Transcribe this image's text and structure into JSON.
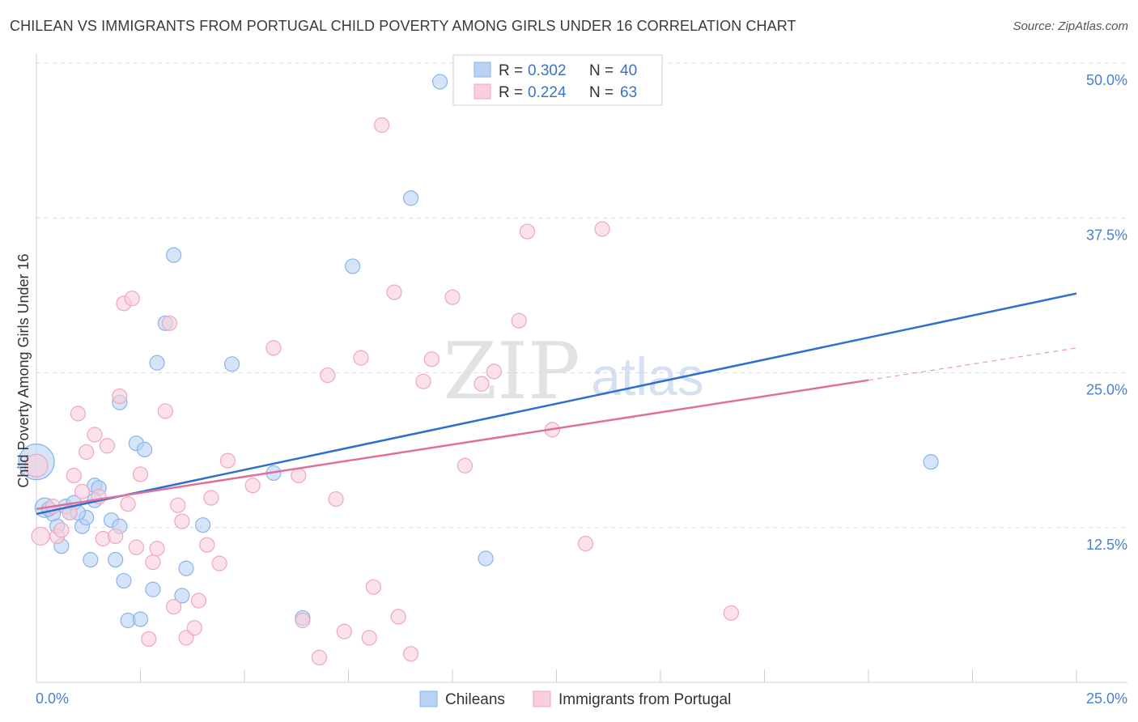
{
  "title": "CHILEAN VS IMMIGRANTS FROM PORTUGAL CHILD POVERTY AMONG GIRLS UNDER 16 CORRELATION CHART",
  "source": "Source: ZipAtlas.com",
  "watermark": {
    "zip": "ZIP",
    "atlas": "atlas"
  },
  "chart_data": {
    "type": "scatter",
    "title": "CHILEAN VS IMMIGRANTS FROM PORTUGAL CHILD POVERTY AMONG GIRLS UNDER 16 CORRELATION CHART",
    "xlabel": "",
    "ylabel": "Child Poverty Among Girls Under 16",
    "xlim": [
      0,
      25
    ],
    "ylim": [
      0,
      50
    ],
    "x_tick_labels": {
      "left": "0.0%",
      "right": "25.0%"
    },
    "y_ticks": [
      {
        "value": 12.5,
        "label": "12.5%"
      },
      {
        "value": 25.0,
        "label": "25.0%"
      },
      {
        "value": 37.5,
        "label": "37.5%"
      },
      {
        "value": 50.0,
        "label": "50.0%"
      }
    ],
    "legend": {
      "r_label": "R =",
      "n_label": "N =",
      "entries": [
        {
          "r": "0.302",
          "n": "40"
        },
        {
          "r": "0.224",
          "n": "63"
        }
      ]
    },
    "series": [
      {
        "name": "Chileans",
        "color": "#8ab4ea",
        "fill": "#b9d2f4",
        "line_color": "#2f6fd0",
        "trend": {
          "x0": 0,
          "y0": 13.6,
          "x1": 25,
          "y1": 31.4,
          "solid_until": 25
        },
        "points": [
          [
            0.0,
            17.8,
            22
          ],
          [
            0.2,
            14.1,
            12
          ],
          [
            0.4,
            13.6,
            9
          ],
          [
            0.5,
            12.6,
            9
          ],
          [
            0.6,
            11.0,
            9
          ],
          [
            0.7,
            14.2,
            9
          ],
          [
            0.8,
            13.7,
            9
          ],
          [
            0.9,
            14.5,
            9
          ],
          [
            1.1,
            12.6,
            9
          ],
          [
            1.2,
            13.3,
            9
          ],
          [
            1.3,
            9.9,
            9
          ],
          [
            1.4,
            15.9,
            9
          ],
          [
            1.5,
            15.7,
            9
          ],
          [
            1.4,
            14.7,
            9
          ],
          [
            1.8,
            13.1,
            9
          ],
          [
            1.9,
            9.9,
            9
          ],
          [
            2.0,
            12.6,
            9
          ],
          [
            2.0,
            22.6,
            9
          ],
          [
            2.1,
            8.2,
            9
          ],
          [
            2.2,
            5.0,
            9
          ],
          [
            2.5,
            5.1,
            9
          ],
          [
            2.4,
            19.3,
            9
          ],
          [
            2.6,
            18.8,
            9
          ],
          [
            2.8,
            7.5,
            9
          ],
          [
            2.9,
            25.8,
            9
          ],
          [
            3.1,
            29.0,
            9
          ],
          [
            3.3,
            34.5,
            9
          ],
          [
            3.5,
            7.0,
            9
          ],
          [
            3.6,
            9.2,
            9
          ],
          [
            4.0,
            12.7,
            9
          ],
          [
            4.7,
            25.7,
            9
          ],
          [
            5.7,
            16.9,
            9
          ],
          [
            6.4,
            5.2,
            9
          ],
          [
            7.6,
            33.6,
            9
          ],
          [
            9.0,
            39.1,
            9
          ],
          [
            9.7,
            48.5,
            9
          ],
          [
            10.8,
            10.0,
            9
          ],
          [
            21.5,
            17.8,
            9
          ],
          [
            0.3,
            14.0,
            9
          ],
          [
            1.0,
            13.7,
            9
          ]
        ]
      },
      {
        "name": "Immigrants from Portugal",
        "color": "#f0a6bd",
        "fill": "#f9cfdc",
        "line_color": "#e0709a",
        "trend": {
          "x0": 0,
          "y0": 14.0,
          "x1": 25,
          "y1": 27.0,
          "solid_until": 20.0
        },
        "points": [
          [
            0.0,
            17.5,
            14
          ],
          [
            0.1,
            11.8,
            11
          ],
          [
            0.4,
            14.2,
            9
          ],
          [
            0.5,
            11.8,
            9
          ],
          [
            0.6,
            12.3,
            9
          ],
          [
            0.8,
            13.7,
            9
          ],
          [
            0.9,
            16.7,
            9
          ],
          [
            1.0,
            21.7,
            9
          ],
          [
            1.1,
            15.4,
            9
          ],
          [
            1.2,
            18.6,
            9
          ],
          [
            1.4,
            20.0,
            9
          ],
          [
            1.5,
            15.0,
            9
          ],
          [
            1.6,
            11.6,
            9
          ],
          [
            1.7,
            19.1,
            9
          ],
          [
            1.9,
            11.8,
            9
          ],
          [
            2.0,
            23.1,
            9
          ],
          [
            2.1,
            30.6,
            9
          ],
          [
            2.2,
            14.4,
            9
          ],
          [
            2.3,
            31.0,
            9
          ],
          [
            2.4,
            10.9,
            9
          ],
          [
            2.5,
            16.8,
            9
          ],
          [
            2.7,
            3.5,
            9
          ],
          [
            2.8,
            9.7,
            9
          ],
          [
            2.9,
            10.8,
            9
          ],
          [
            3.1,
            21.9,
            9
          ],
          [
            3.2,
            29.0,
            9
          ],
          [
            3.3,
            6.1,
            9
          ],
          [
            3.4,
            14.3,
            9
          ],
          [
            3.5,
            13.0,
            9
          ],
          [
            3.6,
            3.6,
            9
          ],
          [
            3.8,
            4.4,
            9
          ],
          [
            3.9,
            6.6,
            9
          ],
          [
            4.1,
            11.1,
            9
          ],
          [
            4.2,
            14.9,
            9
          ],
          [
            4.4,
            9.6,
            9
          ],
          [
            4.6,
            17.9,
            9
          ],
          [
            5.2,
            15.9,
            9
          ],
          [
            5.7,
            27.0,
            9
          ],
          [
            6.3,
            16.7,
            9
          ],
          [
            6.4,
            5.0,
            9
          ],
          [
            6.8,
            2.0,
            9
          ],
          [
            7.0,
            24.8,
            9
          ],
          [
            7.2,
            14.8,
            9
          ],
          [
            7.4,
            4.1,
            9
          ],
          [
            7.8,
            26.2,
            9
          ],
          [
            8.0,
            3.6,
            9
          ],
          [
            8.1,
            7.7,
            9
          ],
          [
            8.3,
            45.0,
            9
          ],
          [
            8.6,
            31.5,
            9
          ],
          [
            8.7,
            5.3,
            9
          ],
          [
            9.0,
            2.3,
            9
          ],
          [
            9.3,
            24.3,
            9
          ],
          [
            9.5,
            26.1,
            9
          ],
          [
            10.0,
            31.1,
            9
          ],
          [
            10.3,
            17.5,
            9
          ],
          [
            10.7,
            24.1,
            9
          ],
          [
            11.0,
            25.1,
            9
          ],
          [
            11.6,
            29.2,
            9
          ],
          [
            11.8,
            36.4,
            9
          ],
          [
            12.4,
            20.4,
            9
          ],
          [
            13.2,
            11.2,
            9
          ],
          [
            13.6,
            36.6,
            9
          ],
          [
            16.7,
            5.6,
            9
          ]
        ]
      }
    ]
  }
}
